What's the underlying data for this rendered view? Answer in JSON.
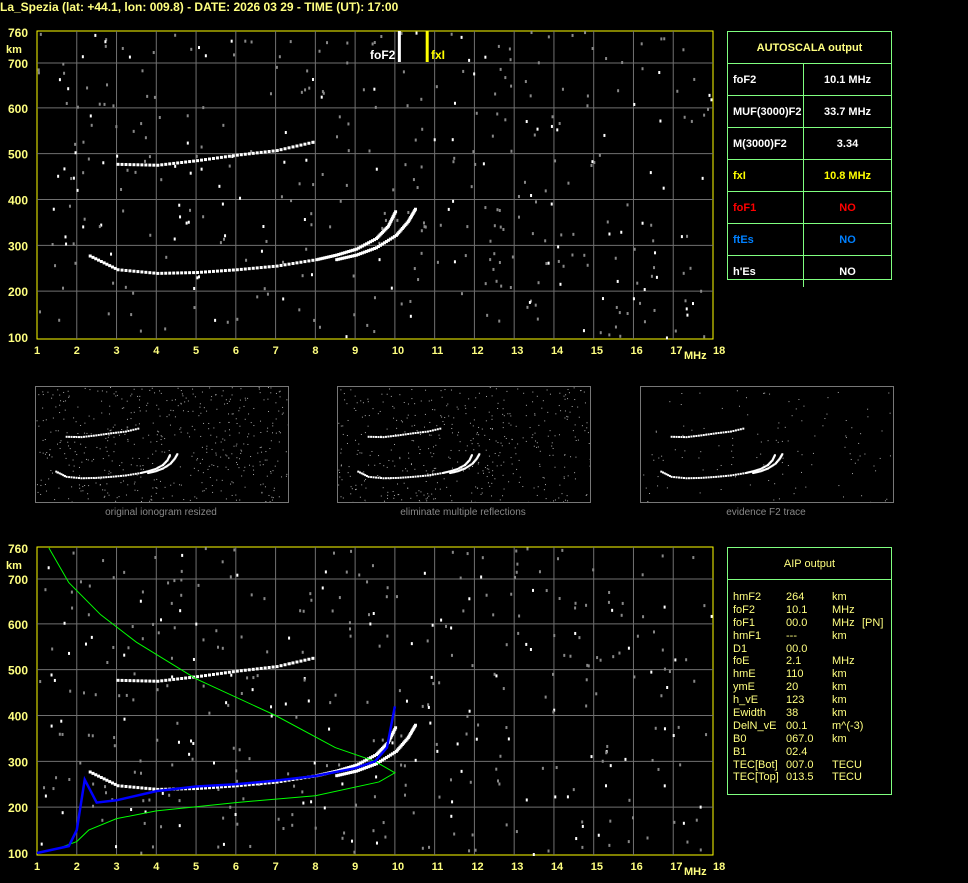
{
  "title": "La_Spezia (lat: +44.1, lon: 009.8) - DATE: 2026 03 29 - TIME (UT): 17:00",
  "colors": {
    "frame": "#ffff00",
    "grid": "#808080",
    "table_border": "#80ff80",
    "label": "#ffff80",
    "fof1": "#ff0000",
    "ftes": "#0080ff",
    "profile": "#00ff00",
    "aip_trace": "#0000ff"
  },
  "autoscala": {
    "title": "AUTOSCALA output",
    "rows": [
      {
        "key": "foF2",
        "value": "10.1 MHz",
        "color": "#ffffff"
      },
      {
        "key": "MUF(3000)F2",
        "value": "33.7 MHz",
        "color": "#ffffff"
      },
      {
        "key": "M(3000)F2",
        "value": "3.34",
        "color": "#ffffff"
      },
      {
        "key": "fxI",
        "value": "10.8 MHz",
        "color": "#ffff00"
      },
      {
        "key": "foF1",
        "value": "NO",
        "color": "#ff0000"
      },
      {
        "key": "ftEs",
        "value": "NO",
        "color": "#0080ff"
      },
      {
        "key": "h'Es",
        "value": "NO",
        "color": "#ffffff"
      }
    ]
  },
  "aip": {
    "title": "AIP output",
    "rows": [
      [
        "hmF2",
        "264",
        "km",
        ""
      ],
      [
        "foF2",
        "10.1",
        "MHz",
        ""
      ],
      [
        "foF1",
        "00.0",
        "MHz",
        "[PN]"
      ],
      [
        "hmF1",
        "---",
        "km",
        ""
      ],
      [
        "D1",
        "00.0",
        "",
        ""
      ],
      [
        "foE",
        "2.1",
        "MHz",
        ""
      ],
      [
        "hmE",
        "110",
        "km",
        ""
      ],
      [
        "ymE",
        "20",
        "km",
        ""
      ],
      [
        "h_vE",
        "123",
        "km",
        ""
      ],
      [
        "Ewidth",
        "38",
        "km",
        ""
      ],
      [
        "DelN_vE",
        "00.1",
        "m^(-3)",
        ""
      ],
      [
        "B0",
        "067.0",
        "km",
        ""
      ],
      [
        "B1",
        "02.4",
        "",
        ""
      ],
      [
        "TEC[Bot]",
        "007.0",
        "TECU",
        ""
      ],
      [
        "TEC[Top]",
        "013.5",
        "TECU",
        ""
      ]
    ]
  },
  "thumbnails": [
    "original ionogram resized",
    "eliminate multiple reflections",
    "evidence F2 trace"
  ],
  "chart_data": [
    {
      "type": "scatter",
      "xlabel": "MHz",
      "ylabel": "km",
      "xlim": [
        1,
        18
      ],
      "ylim": [
        100,
        760
      ],
      "xticks": [
        "1",
        "2",
        "3",
        "4",
        "5",
        "6",
        "7",
        "8",
        "9",
        "10",
        "11",
        "12",
        "13",
        "14",
        "15",
        "16",
        "17",
        "18"
      ],
      "yticks": [
        "760",
        "700",
        "600",
        "500",
        "400",
        "300",
        "200",
        "100"
      ],
      "grid": true,
      "markers": [
        {
          "label": "foF2",
          "x": 10.1,
          "color": "#ffffff"
        },
        {
          "label": "fxI",
          "x": 10.8,
          "color": "#ffff00"
        }
      ],
      "traces": [
        {
          "x": [
            2.3,
            3,
            4,
            5,
            6,
            7,
            8,
            8.5,
            9,
            9.5,
            9.8,
            10.0
          ],
          "y": [
            280,
            250,
            242,
            244,
            250,
            258,
            272,
            282,
            295,
            318,
            345,
            380
          ]
        },
        {
          "x": [
            8.5,
            9,
            9.5,
            10,
            10.3,
            10.5
          ],
          "y": [
            272,
            282,
            298,
            325,
            355,
            385
          ]
        },
        {
          "x": [
            3,
            4,
            5,
            6,
            7,
            8
          ],
          "y": [
            480,
            478,
            488,
            500,
            510,
            530
          ]
        }
      ]
    },
    {
      "type": "line",
      "xlabel": "MHz",
      "ylabel": "km",
      "xlim": [
        1,
        18
      ],
      "ylim": [
        100,
        760
      ],
      "grid": true,
      "series": [
        {
          "color": "#00ff00",
          "x": [
            1.3,
            1.8,
            2.6,
            3.5,
            5,
            7,
            8.5,
            9.5,
            10,
            9.6,
            8,
            6,
            4,
            3,
            2.3,
            2,
            1.6,
            1
          ],
          "y": [
            760,
            690,
            620,
            560,
            480,
            400,
            330,
            300,
            275,
            255,
            225,
            210,
            192,
            175,
            150,
            125,
            112,
            100
          ]
        },
        {
          "color": "#0000ff",
          "x": [
            1,
            1.8,
            2,
            2.2,
            2.5,
            3,
            4,
            5,
            6,
            7,
            8,
            9,
            9.5,
            9.8,
            10
          ],
          "y": [
            100,
            115,
            150,
            260,
            210,
            215,
            235,
            245,
            250,
            258,
            268,
            285,
            300,
            330,
            420
          ]
        }
      ]
    }
  ]
}
